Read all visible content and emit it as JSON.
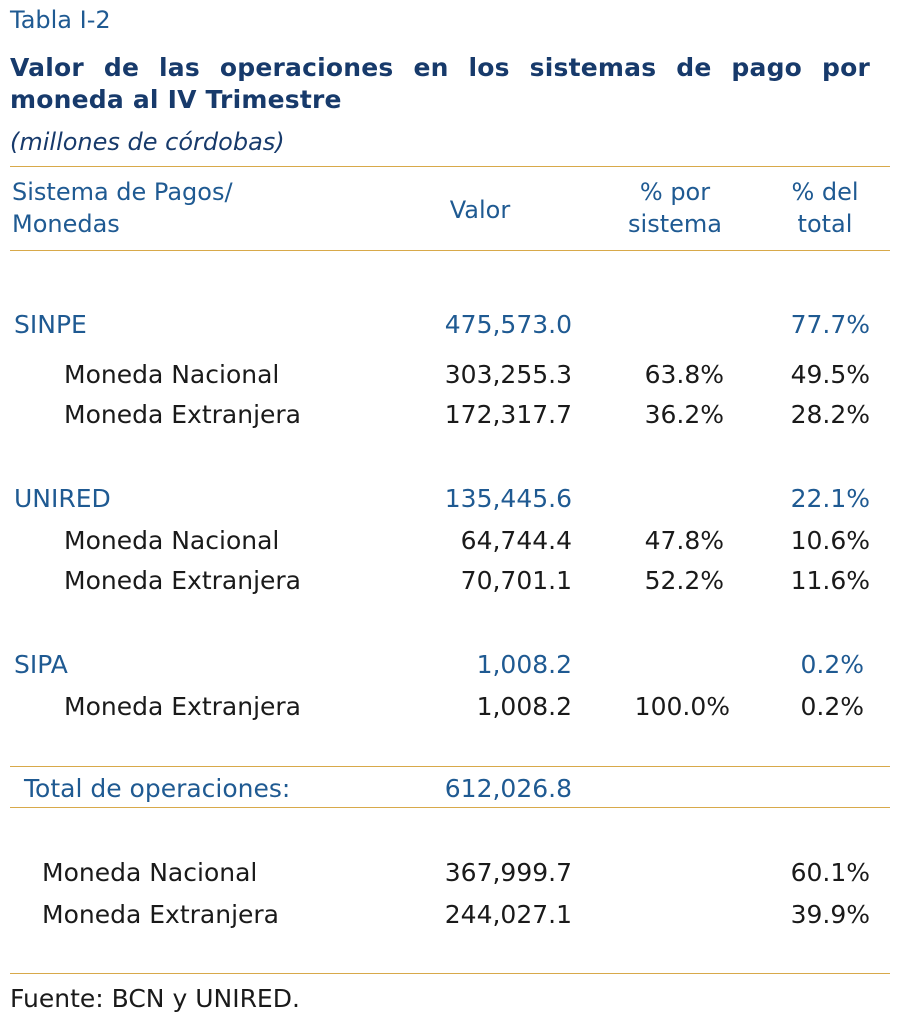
{
  "caption": "Tabla I-2",
  "title_line1": "Valor de las operaciones en los sistemas de pago por",
  "title_line2": "moneda al IV Trimestre",
  "subtitle": "(millones de córdobas)",
  "headers": {
    "system_line1": "Sistema de Pagos/",
    "system_line2": "Monedas",
    "valor": "Valor",
    "pct_system_line1": "% por",
    "pct_system_line2": "sistema",
    "pct_total_line1": "% del",
    "pct_total_line2": "total"
  },
  "groups": [
    {
      "name": "SINPE",
      "valor": "475,573.0",
      "pct_total": "77.7%",
      "rows": [
        {
          "label": "Moneda Nacional",
          "valor": "303,255.3",
          "pct_system": "63.8%",
          "pct_total": "49.5%"
        },
        {
          "label": "Moneda Extranjera",
          "valor": "172,317.7",
          "pct_system": "36.2%",
          "pct_total": "28.2%"
        }
      ]
    },
    {
      "name": "UNIRED",
      "valor": "135,445.6",
      "pct_total": "22.1%",
      "rows": [
        {
          "label": "Moneda Nacional",
          "valor": "64,744.4",
          "pct_system": "47.8%",
          "pct_total": "10.6%"
        },
        {
          "label": "Moneda Extranjera",
          "valor": "70,701.1",
          "pct_system": "52.2%",
          "pct_total": "11.6%"
        }
      ]
    },
    {
      "name": "SIPA",
      "valor": "1,008.2",
      "pct_total": "0.2%",
      "rows": [
        {
          "label": "Moneda Extranjera",
          "valor": "1,008.2",
          "pct_system": "100.0%",
          "pct_total": "0.2%"
        }
      ]
    }
  ],
  "total": {
    "label": "Total de operaciones:",
    "valor": "612,026.8"
  },
  "summary": [
    {
      "label": "Moneda Nacional",
      "valor": "367,999.7",
      "pct_total": "60.1%"
    },
    {
      "label": "Moneda Extranjera",
      "valor": "244,027.1",
      "pct_total": "39.9%"
    }
  ],
  "source": "Fuente: BCN y UNIRED.",
  "colors": {
    "accent_rule": "#d8a94a",
    "header_blue": "#1f5a92",
    "title_navy": "#173a6b"
  }
}
